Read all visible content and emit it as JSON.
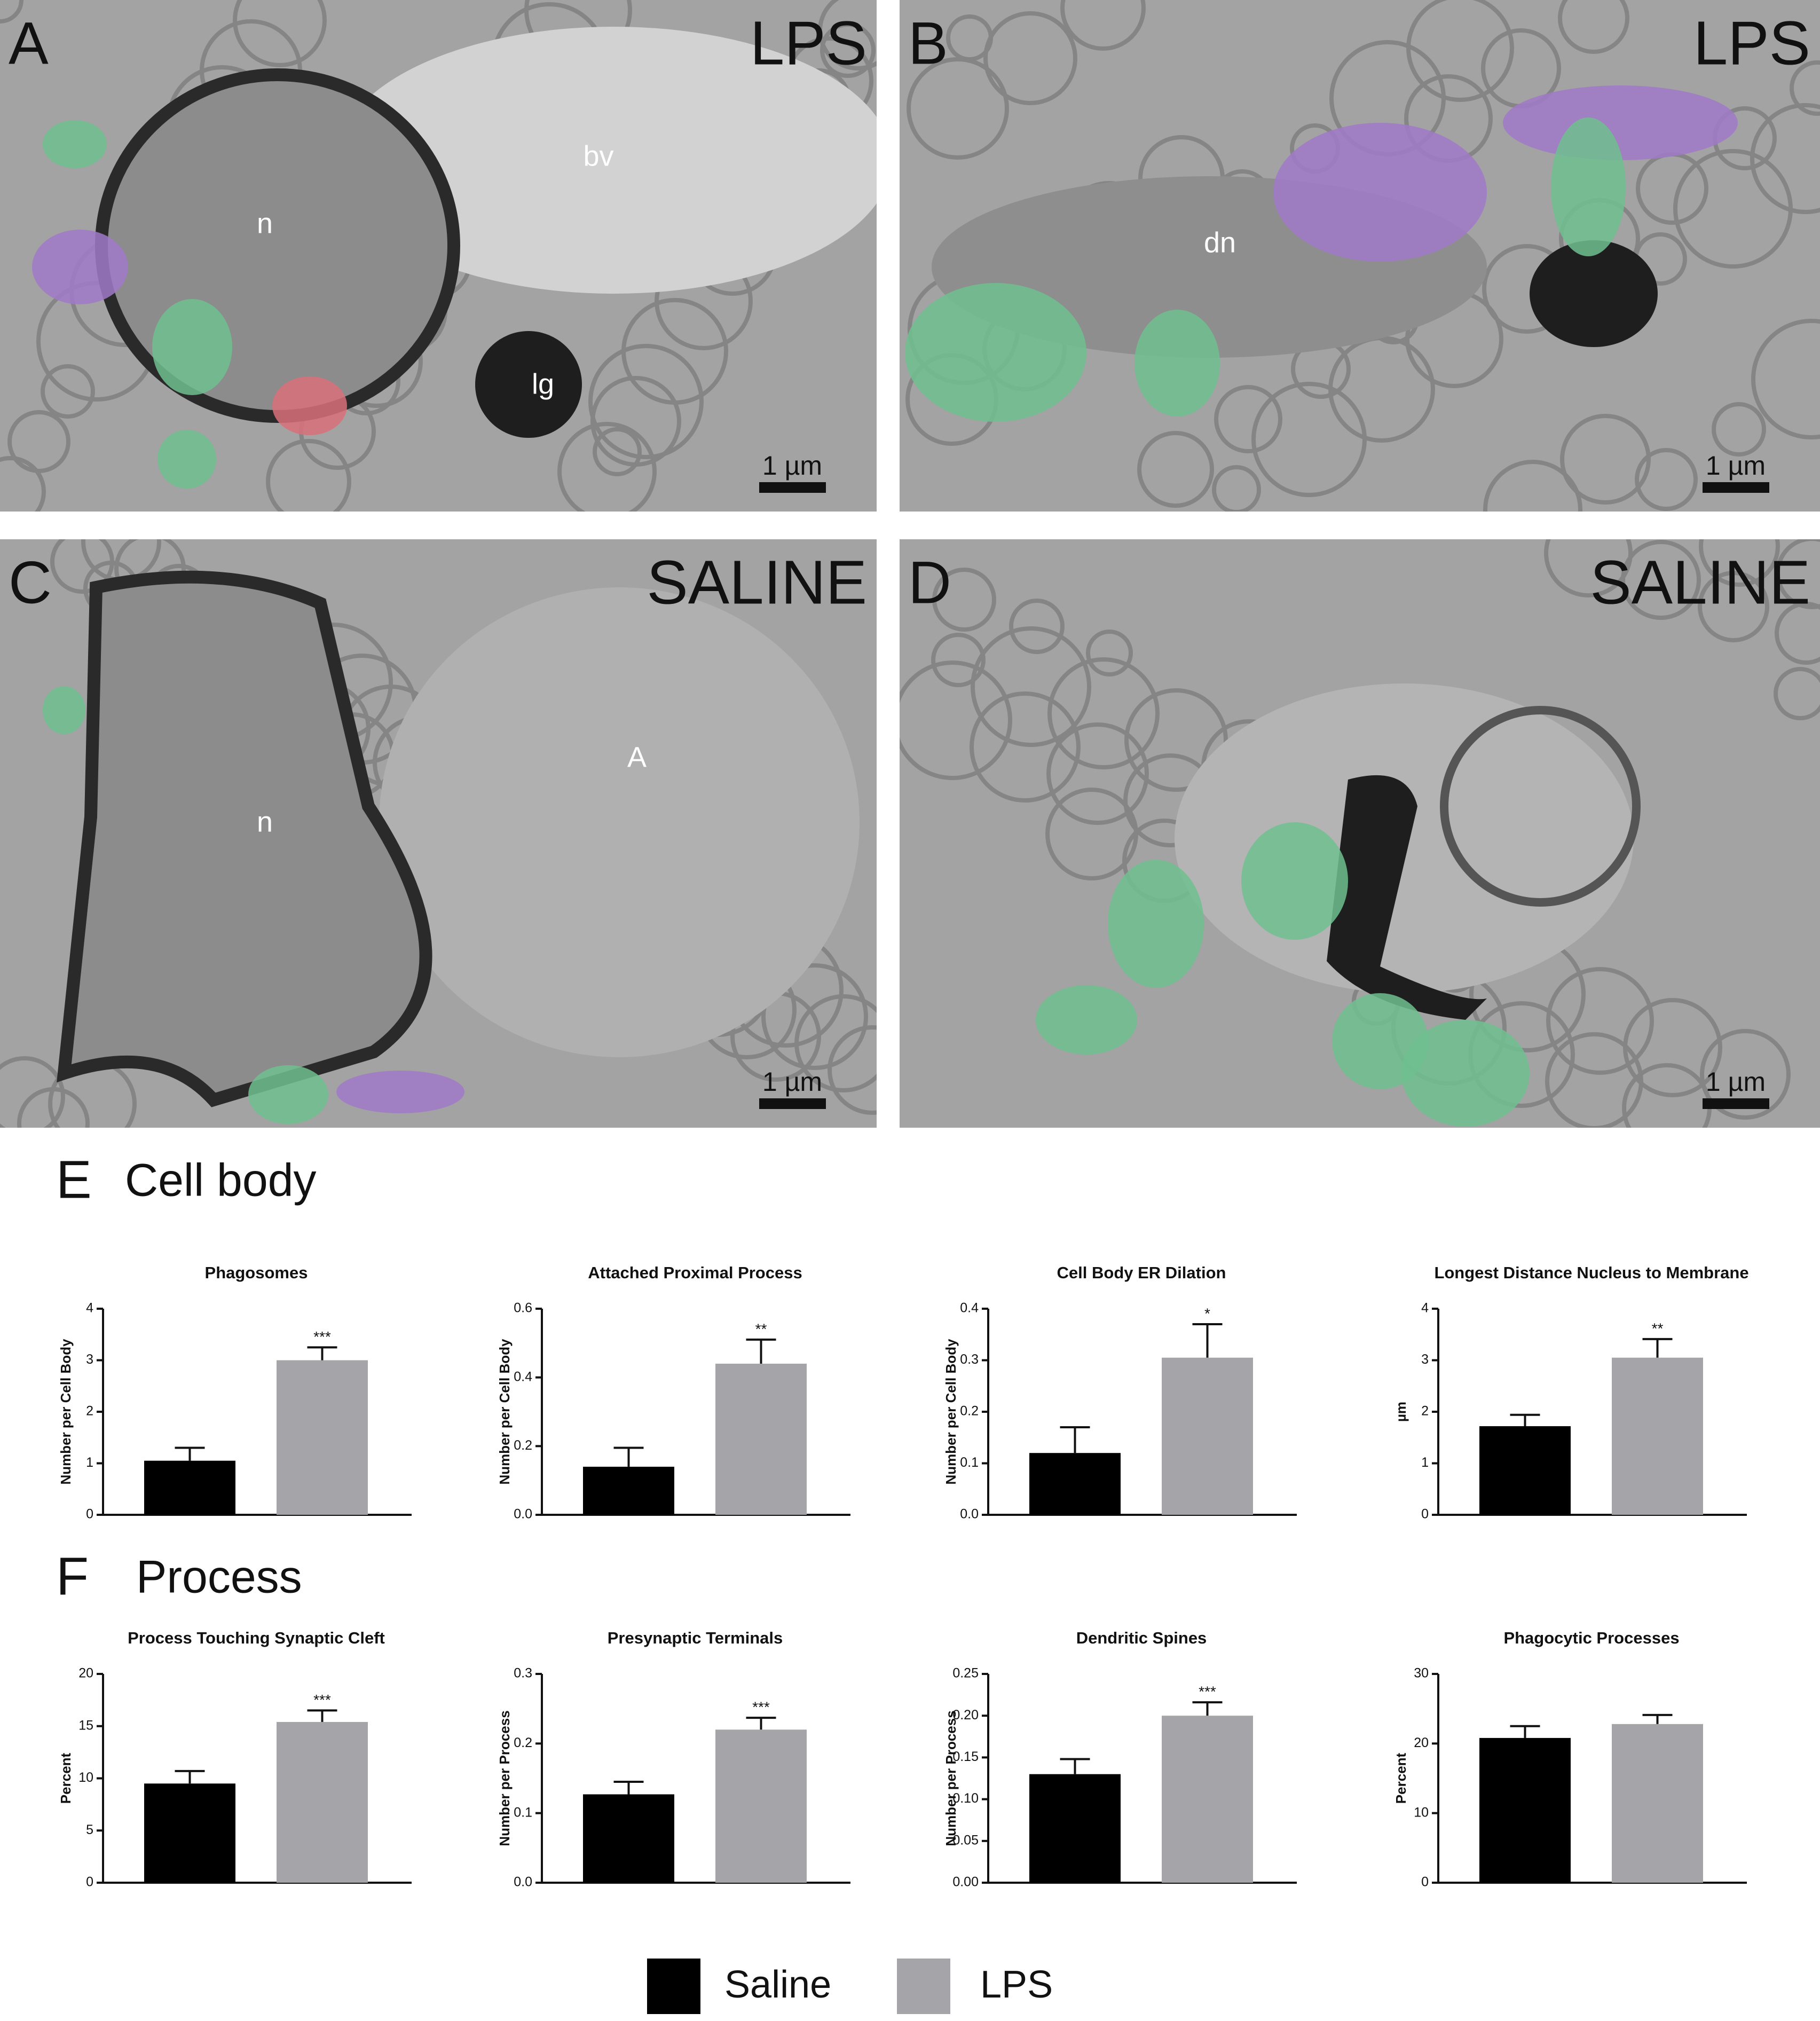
{
  "panels": [
    {
      "letter": "A",
      "condition": "LPS",
      "labels": [
        "bv",
        "n",
        "lg"
      ],
      "scale_bar": "1 µm"
    },
    {
      "letter": "B",
      "condition": "LPS",
      "labels": [
        "dn"
      ],
      "scale_bar": "1 µm"
    },
    {
      "letter": "C",
      "condition": "SALINE",
      "labels": [
        "n",
        "A"
      ],
      "scale_bar": "1 µm"
    },
    {
      "letter": "D",
      "condition": "SALINE",
      "labels": [],
      "scale_bar": "1 µm"
    }
  ],
  "sections": [
    {
      "letter": "E",
      "title": "Cell body"
    },
    {
      "letter": "F",
      "title": "Process"
    }
  ],
  "legend": [
    {
      "name": "Saline",
      "color": "#000000"
    },
    {
      "name": "LPS",
      "color": "#a5a5a9"
    }
  ],
  "chart_data": [
    {
      "type": "bar",
      "title": "Phagosomes",
      "ylabel": "Number per Cell Body",
      "values": [
        1.05,
        3.0
      ],
      "errors": [
        0.25,
        0.25
      ],
      "significance": "***",
      "ylim": [
        0,
        4
      ],
      "yticks": [
        0,
        1,
        2,
        3,
        4
      ]
    },
    {
      "type": "bar",
      "title": "Attached Proximal Process",
      "ylabel": "Number per Cell Body",
      "values": [
        0.14,
        0.44
      ],
      "errors": [
        0.055,
        0.07
      ],
      "significance": "**",
      "ylim": [
        0,
        0.6
      ],
      "yticks": [
        {
          "value": 0,
          "label": "0.0"
        },
        0.2,
        0.4,
        0.6
      ]
    },
    {
      "type": "bar",
      "title": "Cell Body ER Dilation",
      "ylabel": "Number per Cell Body",
      "values": [
        0.12,
        0.305
      ],
      "errors": [
        0.05,
        0.065
      ],
      "significance": "*",
      "ylim": [
        0,
        0.4
      ],
      "yticks": [
        {
          "value": 0,
          "label": "0.0"
        },
        0.1,
        0.2,
        0.3,
        0.4
      ]
    },
    {
      "type": "bar",
      "title": "Longest Distance Nucleus to Membrane",
      "ylabel": "µm",
      "values": [
        1.72,
        3.05
      ],
      "errors": [
        0.22,
        0.36
      ],
      "significance": "**",
      "ylim": [
        0,
        4
      ],
      "yticks": [
        0,
        1,
        2,
        3,
        4
      ]
    },
    {
      "type": "bar",
      "title": "Process Touching Synaptic Cleft",
      "ylabel": "Percent",
      "values": [
        9.5,
        15.4
      ],
      "errors": [
        1.2,
        1.1
      ],
      "significance": "***",
      "ylim": [
        0,
        20
      ],
      "yticks": [
        0,
        5,
        10,
        15,
        20
      ]
    },
    {
      "type": "bar",
      "title": "Presynaptic Terminals",
      "ylabel": "Number per Process",
      "values": [
        0.127,
        0.22
      ],
      "errors": [
        0.018,
        0.017
      ],
      "significance": "***",
      "ylim": [
        0,
        0.3
      ],
      "yticks": [
        {
          "value": 0,
          "label": "0.0"
        },
        0.1,
        0.2,
        0.3
      ]
    },
    {
      "type": "bar",
      "title": "Dendritic Spines",
      "ylabel": "Number per Process",
      "values": [
        0.13,
        0.2
      ],
      "errors": [
        0.018,
        0.016
      ],
      "significance": "***",
      "ylim": [
        0,
        0.25
      ],
      "yticks": [
        {
          "value": 0,
          "label": "0.00"
        },
        0.05,
        {
          "value": 0.1,
          "label": "0.10"
        },
        0.15,
        {
          "value": 0.2,
          "label": "0.20"
        },
        0.25
      ]
    },
    {
      "type": "bar",
      "title": "Phagocytic Processes",
      "ylabel": "Percent",
      "values": [
        20.8,
        22.8
      ],
      "errors": [
        1.7,
        1.3
      ],
      "ylim": [
        0,
        30
      ],
      "yticks": [
        0,
        10,
        20,
        30
      ]
    }
  ]
}
